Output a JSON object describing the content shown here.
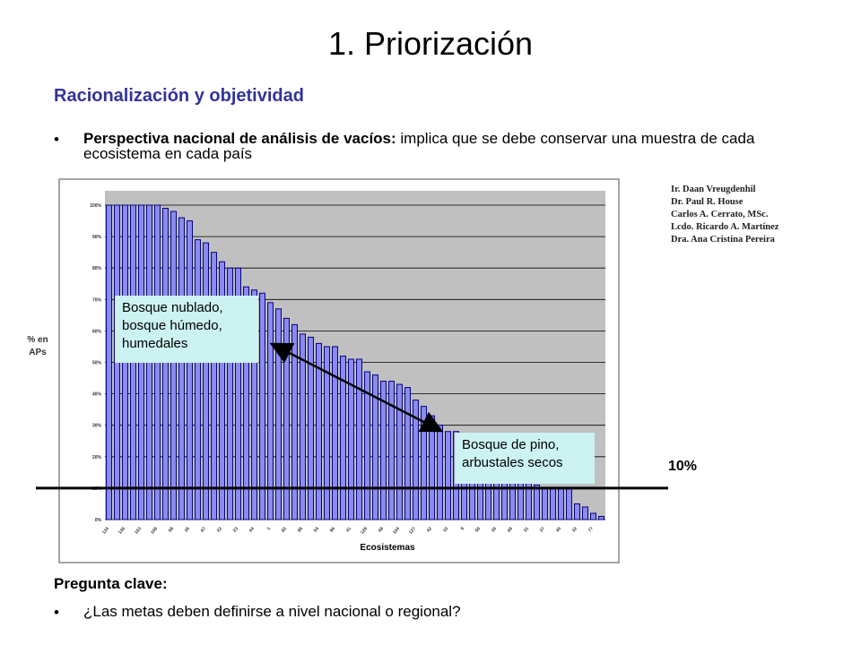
{
  "header": {
    "title": "1. Priorización",
    "subtitle": "Racionalización y objetividad"
  },
  "bullets": [
    {
      "bold": "Perspectiva nacional de análisis de vacíos:",
      "text": " implica que se debe conservar una muestra de cada ecosistema en cada país"
    }
  ],
  "authors": [
    "Ir. Daan Vreugdenhil",
    "Dr. Paul R. House",
    "Carlos A. Cerrato, MSc.",
    "Lcdo. Ricardo A. Martínez",
    "Dra. Ana Cristina Pereira"
  ],
  "question": {
    "heading": "Pregunta clave:",
    "bullet": "¿Las metas deben definirse a nivel nacional o regional?"
  },
  "chart_data": {
    "type": "bar",
    "color": "#8c8cf0",
    "ylabel": "% en APs",
    "xlabel": "Ecosistemas",
    "categories": [
      "134",
      null,
      "145",
      null,
      "163",
      null,
      "108",
      null,
      "68",
      null,
      "35",
      null,
      "67",
      null,
      "22",
      null,
      "23",
      null,
      "64",
      null,
      "1",
      null,
      "82",
      null,
      "85",
      null,
      "54",
      null,
      "96",
      null,
      "41",
      null,
      "129",
      null,
      "68",
      null,
      "104",
      null,
      "127",
      null,
      "42",
      null,
      "10",
      null,
      "9",
      null,
      "50",
      null,
      "30",
      null,
      "65",
      null,
      "31",
      null,
      "37",
      null,
      "40",
      null,
      "32",
      null,
      "77",
      null
    ],
    "values": [
      100,
      100,
      100,
      100,
      100,
      100,
      100,
      99,
      98,
      96,
      95,
      89,
      88,
      85,
      82,
      80,
      80,
      74,
      73,
      72,
      69,
      67,
      64,
      62,
      59,
      58,
      56,
      55,
      55,
      52,
      51,
      51,
      47,
      46,
      44,
      44,
      43,
      42,
      38,
      36,
      33,
      30,
      28,
      28,
      23,
      22,
      21,
      20,
      19,
      16,
      15,
      15,
      14,
      11,
      10,
      10,
      10,
      10,
      5,
      4,
      2,
      1
    ],
    "ylim": [
      0,
      100
    ],
    "yticks": [
      {
        "value": 0,
        "label": "0%"
      },
      {
        "value": 10,
        "label": "10%"
      },
      {
        "value": 20,
        "label": "20%"
      },
      {
        "value": 30,
        "label": "30%"
      },
      {
        "value": 40,
        "label": "40%"
      },
      {
        "value": 50,
        "label": "50%"
      },
      {
        "value": 60,
        "label": "60%"
      },
      {
        "value": 70,
        "label": "70%"
      },
      {
        "value": 80,
        "label": "80%"
      },
      {
        "value": 90,
        "label": "90%"
      },
      {
        "value": 100,
        "label": "100%"
      }
    ],
    "grid": true,
    "threshold": {
      "value": 10,
      "label": "10%"
    },
    "annotations": [
      "Bosque nublado, bosque húmedo, humedales",
      "Bosque de pino, arbustales secos"
    ]
  }
}
